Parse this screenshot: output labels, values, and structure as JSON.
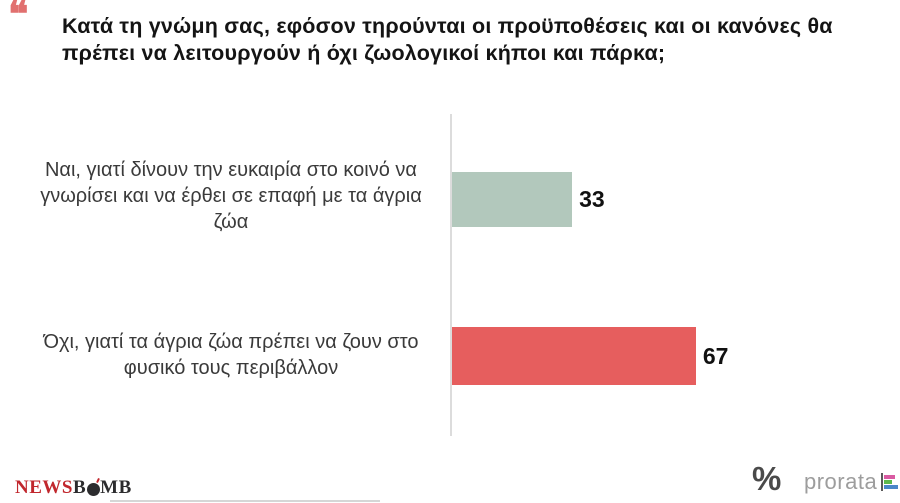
{
  "chart_data": {
    "type": "bar",
    "orientation": "horizontal",
    "title": "Κατά τη γνώμη σας, εφόσον τηρούνται οι προϋποθέσεις και οι κανόνες θα πρέπει να λειτουργούν ή όχι ζωολογικοί κήποι και πάρκα;",
    "categories": [
      "Ναι, γιατί δίνουν την ευκαιρία στο κοινό να γνωρίσει και να έρθει σε επαφή με τα άγρια ζώα",
      "Όχι, γιατί τα άγρια ζώα πρέπει να ζουν στο φυσικό τους περιβάλλον"
    ],
    "values": [
      33,
      67
    ],
    "bar_colors": [
      "#b2c8bc",
      "#e65e5e"
    ],
    "value_label_color": "#111111",
    "xlim": [
      0,
      100
    ],
    "grid": false,
    "legend": false
  },
  "icons": {
    "quote_glyph": "❝",
    "quote_color": "#e1706f"
  },
  "footer": {
    "newsbomb": {
      "part_red": "NEWS",
      "part_dark_b": "B",
      "part_dark_mb": "MB"
    },
    "percent_symbol": "%",
    "prorata_label": "prorata"
  }
}
